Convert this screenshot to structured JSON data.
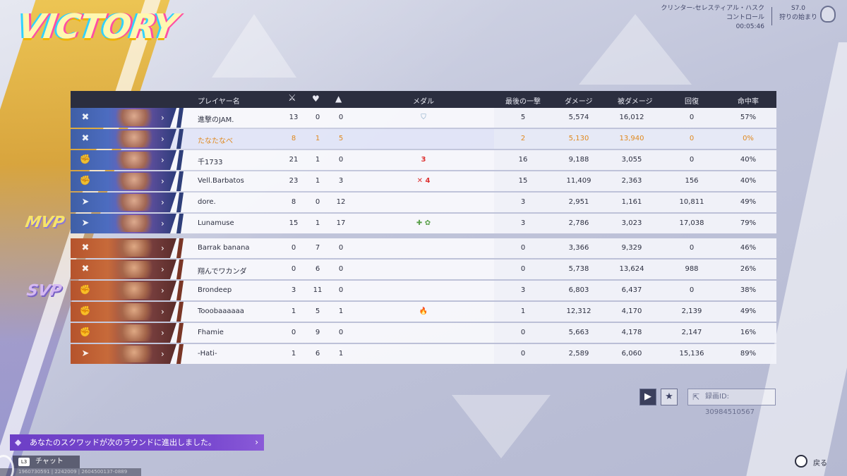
{
  "title": "VICTORY",
  "match": {
    "map": "クリンター-セレスティアル・ハスク",
    "mode": "コントロール",
    "time": "00:05:46",
    "season": "S7.0",
    "event": "狩りの始まり"
  },
  "headers": {
    "player": "プレイヤー名",
    "kills_icon": "crossed-swords-icon",
    "deaths_icon": "broken-heart-icon",
    "assists_icon": "assist-icon",
    "medals": "メダル",
    "final_blow": "最後の一撃",
    "damage": "ダメージ",
    "damage_taken": "被ダメージ",
    "healing": "回復",
    "accuracy": "命中率"
  },
  "team_a": [
    {
      "name": "進撃のJAM.",
      "k": "13",
      "d": "0",
      "a": "0",
      "medal": "⛉",
      "medal_class": "medal-shield",
      "fb": "5",
      "dmg": "5,574",
      "taken": "16,012",
      "heal": "0",
      "acc": "57%",
      "icon": "✖"
    },
    {
      "name": "たなたなべ",
      "k": "8",
      "d": "1",
      "a": "5",
      "medal": "",
      "medal_class": "",
      "fb": "2",
      "dmg": "5,130",
      "taken": "13,940",
      "heal": "0",
      "acc": "0%",
      "icon": "✖",
      "highlight": true
    },
    {
      "name": "千1733",
      "k": "21",
      "d": "1",
      "a": "0",
      "medal": "3",
      "medal_class": "medal-red",
      "fb": "16",
      "dmg": "9,188",
      "taken": "3,055",
      "heal": "0",
      "acc": "40%",
      "icon": "✊"
    },
    {
      "name": "Vell.Barbatos",
      "k": "23",
      "d": "1",
      "a": "3",
      "medal": "✕ 4",
      "medal_class": "medal-red",
      "fb": "15",
      "dmg": "11,409",
      "taken": "2,363",
      "heal": "156",
      "acc": "40%",
      "icon": "✊"
    },
    {
      "name": "dore.",
      "k": "8",
      "d": "0",
      "a": "12",
      "medal": "",
      "medal_class": "",
      "fb": "3",
      "dmg": "2,951",
      "taken": "1,161",
      "heal": "10,811",
      "acc": "49%",
      "icon": "➤"
    },
    {
      "name": "Lunamuse",
      "k": "15",
      "d": "1",
      "a": "17",
      "medal": "✚ ✿",
      "medal_class": "medal-green",
      "fb": "3",
      "dmg": "2,786",
      "taken": "3,023",
      "heal": "17,038",
      "acc": "79%",
      "icon": "➤"
    }
  ],
  "team_b": [
    {
      "name": "Barrak banana",
      "k": "0",
      "d": "7",
      "a": "0",
      "medal": "",
      "medal_class": "",
      "fb": "0",
      "dmg": "3,366",
      "taken": "9,329",
      "heal": "0",
      "acc": "46%",
      "icon": "✖"
    },
    {
      "name": "翔んでワカンダ",
      "k": "0",
      "d": "6",
      "a": "0",
      "medal": "",
      "medal_class": "",
      "fb": "0",
      "dmg": "5,738",
      "taken": "13,624",
      "heal": "988",
      "acc": "26%",
      "icon": "✖"
    },
    {
      "name": "Brondeep",
      "k": "3",
      "d": "11",
      "a": "0",
      "medal": "",
      "medal_class": "",
      "fb": "3",
      "dmg": "6,803",
      "taken": "6,437",
      "heal": "0",
      "acc": "38%",
      "icon": "✊"
    },
    {
      "name": "Tooobaaaaaa",
      "k": "1",
      "d": "5",
      "a": "1",
      "medal": "🔥",
      "medal_class": "medal-fire",
      "fb": "1",
      "dmg": "12,312",
      "taken": "4,170",
      "heal": "2,139",
      "acc": "49%",
      "icon": "✊"
    },
    {
      "name": "Fhamie",
      "k": "0",
      "d": "9",
      "a": "0",
      "medal": "",
      "medal_class": "",
      "fb": "0",
      "dmg": "5,663",
      "taken": "4,178",
      "heal": "2,147",
      "acc": "16%",
      "icon": "✊"
    },
    {
      "name": "-Hati-",
      "k": "1",
      "d": "6",
      "a": "1",
      "medal": "",
      "medal_class": "",
      "fb": "0",
      "dmg": "2,589",
      "taken": "6,060",
      "heal": "15,136",
      "acc": "89%",
      "icon": "➤"
    }
  ],
  "mvp_label": "MVP",
  "svp_label": "SVP",
  "replay_label": "録画ID: 30984510567",
  "notice": "あなたのスクワッドが次のラウンドに進出しました。",
  "chat_label": "チャット",
  "l3_label": "L3",
  "back_label": "戻る",
  "bottom_text": "1960730591 | 2242009 | 2604500137-0889",
  "colors": {
    "team_a": "#3f5fa6",
    "team_b": "#b5532c",
    "highlight_text": "#e0891e",
    "notice": "#6d3fc6"
  }
}
